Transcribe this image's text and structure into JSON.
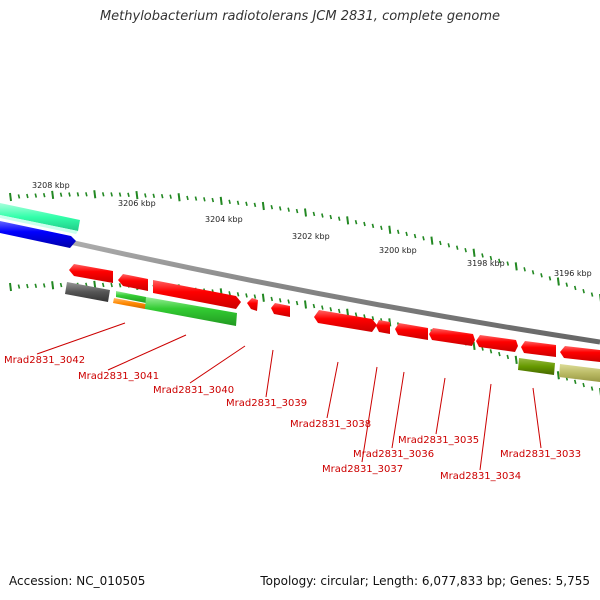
{
  "title": "Methylobacterium radiotolerans JCM 2831, complete genome",
  "footer": {
    "accession": "Accession: NC_010505",
    "summary": "Topology: circular; Length: 6,077,833 bp; Genes: 5,755"
  },
  "ticks": [
    "3208 kbp",
    "3206 kbp",
    "3204 kbp",
    "3202 kbp",
    "3200 kbp",
    "3198 kbp",
    "3196 kbp"
  ],
  "genes": [
    "Mrad2831_3042",
    "Mrad2831_3041",
    "Mrad2831_3040",
    "Mrad2831_3039",
    "Mrad2831_3038",
    "Mrad2831_3037",
    "Mrad2831_3036",
    "Mrad2831_3035",
    "Mrad2831_3034",
    "Mrad2831_3033"
  ],
  "colors": {
    "backbone": "#8a8a8a",
    "gene_red": "#ff0000",
    "gene_green": "#33cc33",
    "gene_teal": "#33ffaa",
    "gene_blue": "#0000ff",
    "gene_gray": "#555555",
    "gene_orange": "#ff8800",
    "gene_olive": "#669900",
    "gene_khaki": "#bbbb66",
    "tick_green": "#228822",
    "label_red": "#cc0000"
  }
}
